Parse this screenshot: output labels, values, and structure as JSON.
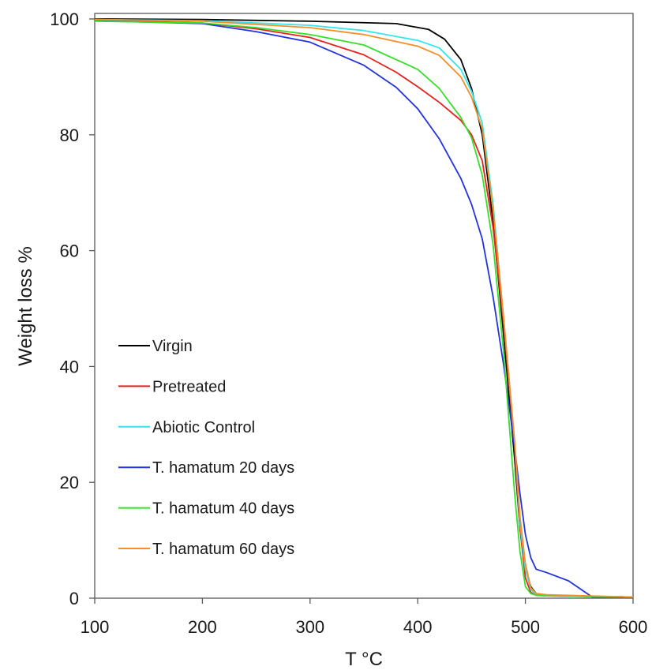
{
  "chart_data": {
    "type": "line",
    "xlabel": "T °C",
    "ylabel": "Weight loss %",
    "xlim": [
      100,
      600
    ],
    "ylim": [
      0,
      100
    ],
    "xticks": [
      100,
      200,
      300,
      400,
      500,
      600
    ],
    "yticks": [
      0,
      20,
      40,
      60,
      80,
      100
    ],
    "grid": false,
    "legend_position": "left",
    "series": [
      {
        "name": "Virgin",
        "color": "#000000",
        "points": [
          [
            100,
            100
          ],
          [
            200,
            99.9
          ],
          [
            300,
            99.6
          ],
          [
            380,
            99.2
          ],
          [
            410,
            98.2
          ],
          [
            425,
            96.5
          ],
          [
            440,
            93
          ],
          [
            450,
            88
          ],
          [
            460,
            80
          ],
          [
            470,
            65
          ],
          [
            480,
            45
          ],
          [
            490,
            24
          ],
          [
            495,
            12
          ],
          [
            500,
            5
          ],
          [
            505,
            2
          ],
          [
            510,
            0.8
          ],
          [
            520,
            0.5
          ],
          [
            560,
            0.3
          ],
          [
            600,
            0.2
          ]
        ]
      },
      {
        "name": "Pretreated",
        "color": "#e8211c",
        "points": [
          [
            100,
            99.8
          ],
          [
            200,
            99.3
          ],
          [
            250,
            98.3
          ],
          [
            300,
            96.8
          ],
          [
            350,
            93.8
          ],
          [
            380,
            90.8
          ],
          [
            400,
            88.3
          ],
          [
            420,
            85.6
          ],
          [
            440,
            82.5
          ],
          [
            450,
            80
          ],
          [
            460,
            75.5
          ],
          [
            470,
            64
          ],
          [
            480,
            47
          ],
          [
            490,
            26
          ],
          [
            495,
            12
          ],
          [
            500,
            3.5
          ],
          [
            505,
            1
          ],
          [
            510,
            0.5
          ],
          [
            520,
            0.4
          ],
          [
            560,
            0.3
          ],
          [
            600,
            0.2
          ]
        ]
      },
      {
        "name": "Abiotic Control",
        "color": "#33e5ef",
        "points": [
          [
            100,
            99.9
          ],
          [
            200,
            99.7
          ],
          [
            300,
            98.9
          ],
          [
            350,
            98
          ],
          [
            400,
            96.3
          ],
          [
            420,
            95
          ],
          [
            440,
            91.3
          ],
          [
            450,
            87.5
          ],
          [
            460,
            82
          ],
          [
            470,
            68
          ],
          [
            480,
            48
          ],
          [
            490,
            27
          ],
          [
            495,
            13
          ],
          [
            500,
            5
          ],
          [
            505,
            1.5
          ],
          [
            510,
            0.6
          ],
          [
            520,
            0.4
          ],
          [
            560,
            0.3
          ],
          [
            600,
            0.2
          ]
        ]
      },
      {
        "name": "T. hamatum 20 days",
        "color": "#2233e0",
        "points": [
          [
            100,
            99.7
          ],
          [
            200,
            99.2
          ],
          [
            250,
            97.8
          ],
          [
            300,
            96
          ],
          [
            350,
            92
          ],
          [
            380,
            88.2
          ],
          [
            400,
            84.5
          ],
          [
            420,
            79.3
          ],
          [
            440,
            72.5
          ],
          [
            450,
            68
          ],
          [
            460,
            62
          ],
          [
            470,
            52
          ],
          [
            480,
            40
          ],
          [
            490,
            26
          ],
          [
            495,
            18
          ],
          [
            500,
            11
          ],
          [
            505,
            7
          ],
          [
            510,
            5
          ],
          [
            520,
            4.4
          ],
          [
            540,
            3
          ],
          [
            562,
            0.2
          ],
          [
            600,
            0.2
          ]
        ]
      },
      {
        "name": "T. hamatum 40 days",
        "color": "#35e02a",
        "points": [
          [
            100,
            99.6
          ],
          [
            200,
            99.3
          ],
          [
            250,
            98.5
          ],
          [
            300,
            97.3
          ],
          [
            350,
            95.5
          ],
          [
            400,
            91.3
          ],
          [
            420,
            88
          ],
          [
            440,
            83
          ],
          [
            450,
            79.5
          ],
          [
            460,
            73
          ],
          [
            470,
            61
          ],
          [
            480,
            42
          ],
          [
            490,
            18
          ],
          [
            495,
            8
          ],
          [
            500,
            2
          ],
          [
            505,
            0.8
          ],
          [
            510,
            0.5
          ],
          [
            560,
            0.3
          ],
          [
            600,
            0.2
          ]
        ]
      },
      {
        "name": "T. hamatum 60 days",
        "color": "#f4902a",
        "points": [
          [
            100,
            99.9
          ],
          [
            200,
            99.6
          ],
          [
            300,
            98.5
          ],
          [
            350,
            97.3
          ],
          [
            400,
            95.3
          ],
          [
            420,
            93.7
          ],
          [
            440,
            90
          ],
          [
            450,
            86.5
          ],
          [
            460,
            81
          ],
          [
            470,
            67
          ],
          [
            480,
            48
          ],
          [
            490,
            27
          ],
          [
            495,
            14
          ],
          [
            500,
            6
          ],
          [
            505,
            1.8
          ],
          [
            510,
            0.8
          ],
          [
            520,
            0.6
          ],
          [
            560,
            0.4
          ],
          [
            600,
            0.2
          ]
        ]
      }
    ]
  }
}
